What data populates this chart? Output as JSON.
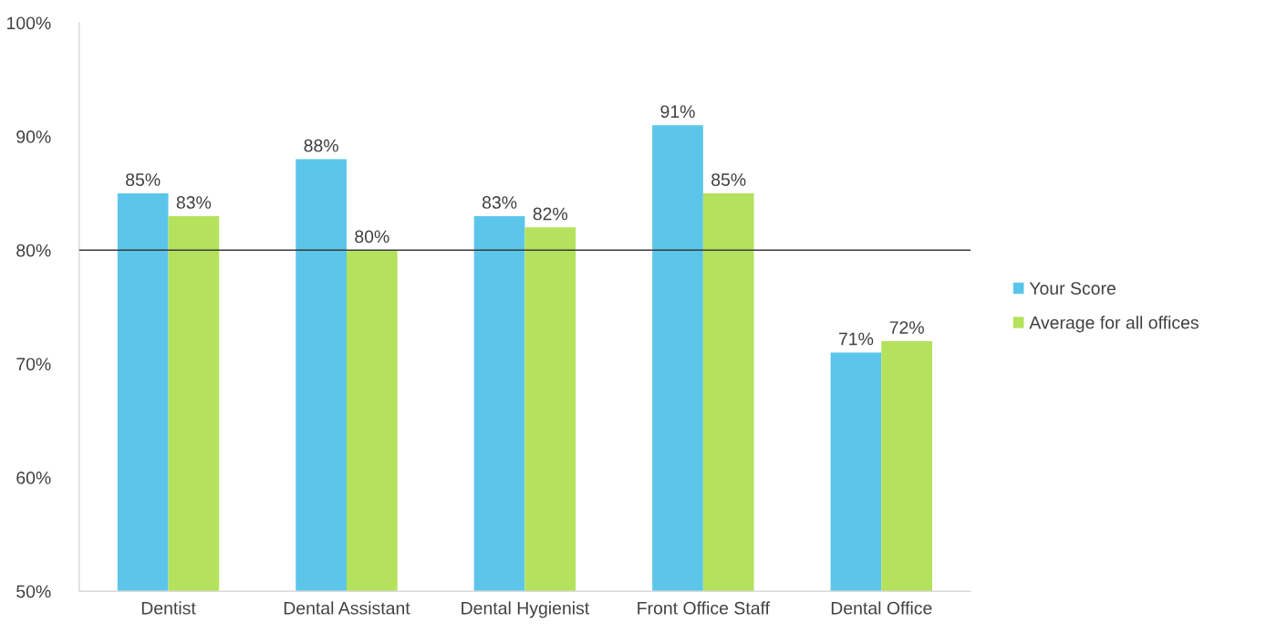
{
  "chart_data": {
    "type": "bar",
    "categories": [
      "Dentist",
      "Dental Assistant",
      "Dental Hygienist",
      "Front Office Staff",
      "Dental Office"
    ],
    "series": [
      {
        "name": "Your Score",
        "color": "#5bc6ea",
        "values": [
          85,
          88,
          83,
          91,
          71
        ],
        "value_labels": [
          "85%",
          "88%",
          "83%",
          "91%",
          "71%"
        ]
      },
      {
        "name": "Average for all offices",
        "color": "#b4e25c",
        "values": [
          83,
          80,
          82,
          85,
          72
        ],
        "value_labels": [
          "83%",
          "80%",
          "82%",
          "85%",
          "72%"
        ]
      }
    ],
    "ylim": [
      50,
      100
    ],
    "yticks": [
      {
        "value": 50,
        "label": "50%"
      },
      {
        "value": 60,
        "label": "60%"
      },
      {
        "value": 70,
        "label": "70%"
      },
      {
        "value": 80,
        "label": "80%"
      },
      {
        "value": 90,
        "label": "90%"
      },
      {
        "value": 100,
        "label": "100%"
      }
    ],
    "ref_lines": [
      {
        "axis": "y",
        "value": 80,
        "color": "#3a3a3a"
      }
    ],
    "grid": false,
    "legend": "right"
  }
}
